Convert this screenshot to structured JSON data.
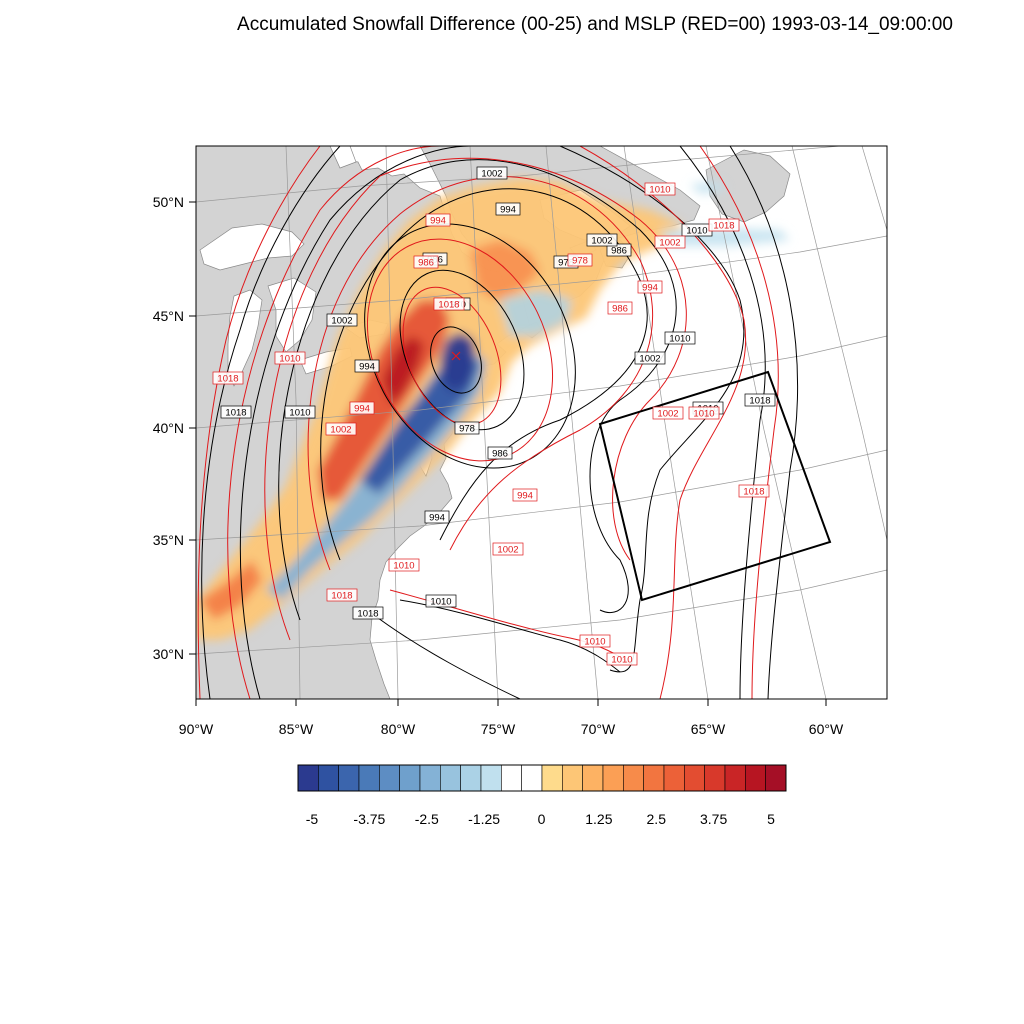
{
  "title": "Accumulated Snowfall Difference (00-25) and MSLP (RED=00) 1993-03-14_09:00:00",
  "colors": {
    "land": "#d3d3d3",
    "water": "#ffffff",
    "coast": "#8a8a8a",
    "red_contour": "#e0191c",
    "black_contour": "#000000",
    "grid": "#9a9a9a"
  },
  "x_ticks": [
    {
      "value": -90,
      "label": "90°W"
    },
    {
      "value": -85,
      "label": "85°W"
    },
    {
      "value": -80,
      "label": "80°W"
    },
    {
      "value": -75,
      "label": "75°W"
    },
    {
      "value": -70,
      "label": "70°W"
    },
    {
      "value": -65,
      "label": "65°W"
    },
    {
      "value": -60,
      "label": "60°W"
    }
  ],
  "y_ticks": [
    {
      "value": 50,
      "label": "50°N"
    },
    {
      "value": 45,
      "label": "45°N"
    },
    {
      "value": 40,
      "label": "40°N"
    },
    {
      "value": 35,
      "label": "35°N"
    },
    {
      "value": 30,
      "label": "30°N"
    }
  ],
  "colorbar": {
    "colors": [
      "#2b3a8f",
      "#2f52a1",
      "#3b65ad",
      "#4a7ab8",
      "#5d8dc3",
      "#6fa0cc",
      "#84b2d6",
      "#98c3de",
      "#abd2e6",
      "#c0e0ee",
      "#ffffff",
      "#ffffff",
      "#fedb8c",
      "#fdc676",
      "#fdb263",
      "#fb9f55",
      "#f78b4a",
      "#f27540",
      "#ec6138",
      "#e34d31",
      "#d8392b",
      "#c92526",
      "#b71522",
      "#a50f26"
    ],
    "labels": [
      "-5",
      "-3.75",
      "-2.5",
      "-1.25",
      "0",
      "1.25",
      "2.5",
      "3.75",
      "5"
    ]
  },
  "black_labels": [
    "1002",
    "994",
    "986",
    "978",
    "986",
    "970",
    "1002",
    "994",
    "1018",
    "1010",
    "978",
    "986",
    "1010",
    "1002",
    "994",
    "1010",
    "1018",
    "1002",
    "1010",
    "1018",
    "1010"
  ],
  "red_labels": [
    "1010",
    "994",
    "1018",
    "1002",
    "994",
    "978",
    "986",
    "1010",
    "994",
    "986",
    "1018",
    "1002",
    "1002",
    "1010",
    "1018",
    "994",
    "1002",
    "1010",
    "1018",
    "1010",
    "1018",
    "1010"
  ]
}
